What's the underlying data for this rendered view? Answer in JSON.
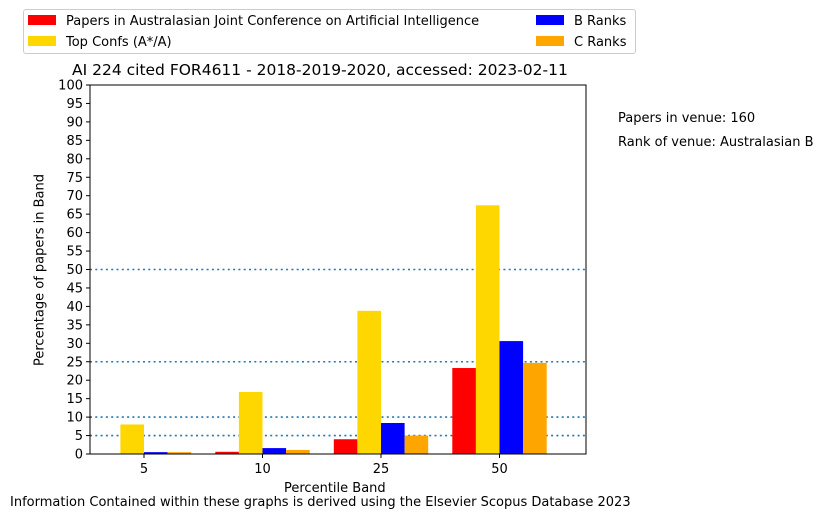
{
  "chart_data": {
    "type": "bar",
    "title": "AI 224 cited FOR4611 - 2018-2019-2020, accessed: 2023-02-11",
    "xlabel": "Percentile Band",
    "ylabel": "Percentage of papers in Band",
    "categories": [
      "5",
      "10",
      "25",
      "50"
    ],
    "ylim": [
      0,
      100
    ],
    "yticks": [
      0,
      5,
      10,
      15,
      20,
      25,
      30,
      35,
      40,
      45,
      50,
      55,
      60,
      65,
      70,
      75,
      80,
      85,
      90,
      95,
      100
    ],
    "reference_lines": [
      5,
      10,
      25,
      50
    ],
    "grid": false,
    "legend_placement": "top, two columns",
    "series": [
      {
        "name": "Papers in Australasian Joint Conference on Artificial Intelligence",
        "color": "#ff0000",
        "values": [
          0,
          0.6,
          4.0,
          23.3
        ]
      },
      {
        "name": "Top Confs (A*/A)",
        "color": "#ffd700",
        "values": [
          8.0,
          16.8,
          38.8,
          67.4
        ]
      },
      {
        "name": "B Ranks",
        "color": "#0000ff",
        "values": [
          0.5,
          1.6,
          8.4,
          30.6
        ]
      },
      {
        "name": "C Ranks",
        "color": "#ffa500",
        "values": [
          0.5,
          1.1,
          5.0,
          24.7
        ]
      }
    ]
  },
  "side_notes": {
    "papers_in_venue": "Papers in venue: 160",
    "rank_of_venue": "Rank of venue: Australasian B"
  },
  "footer": "Information Contained within these graphs is derived using the Elsevier Scopus Database 2023",
  "colors": {
    "reference_line": "#1f77b4"
  }
}
